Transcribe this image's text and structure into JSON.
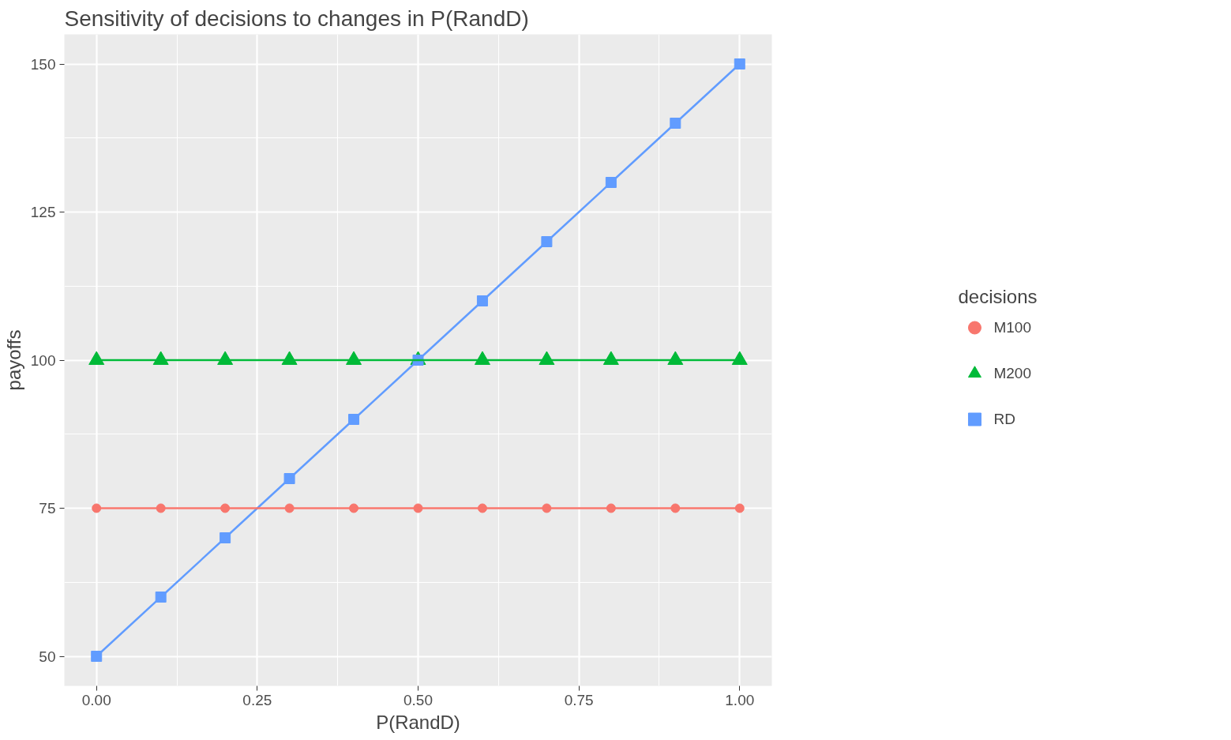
{
  "chart_data": {
    "type": "line",
    "title": "Sensitivity of decisions to changes in P(RandD)",
    "xlabel": "P(RandD)",
    "ylabel": "payoffs",
    "legend_title": "decisions",
    "x": [
      0,
      0.1,
      0.2,
      0.3,
      0.4,
      0.5,
      0.6,
      0.7,
      0.8,
      0.9,
      1.0
    ],
    "series": [
      {
        "name": "M100",
        "color": "#f8766d",
        "marker": "circle",
        "values": [
          75,
          75,
          75,
          75,
          75,
          75,
          75,
          75,
          75,
          75,
          75
        ]
      },
      {
        "name": "M200",
        "color": "#00ba38",
        "marker": "triangle",
        "values": [
          100,
          100,
          100,
          100,
          100,
          100,
          100,
          100,
          100,
          100,
          100
        ]
      },
      {
        "name": "RD",
        "color": "#619cff",
        "marker": "square",
        "values": [
          50,
          60,
          70,
          80,
          90,
          100,
          110,
          120,
          130,
          140,
          150
        ]
      }
    ],
    "xlim": [
      -0.05,
      1.05
    ],
    "ylim": [
      45,
      155
    ],
    "xticks": [
      {
        "value": 0,
        "label": "0.00"
      },
      {
        "value": 0.25,
        "label": "0.25"
      },
      {
        "value": 0.5,
        "label": "0.50"
      },
      {
        "value": 0.75,
        "label": "0.75"
      },
      {
        "value": 1,
        "label": "1.00"
      }
    ],
    "yticks": [
      50,
      75,
      100,
      125,
      150
    ],
    "grid": true,
    "legend": "right",
    "line_style": "solid"
  }
}
